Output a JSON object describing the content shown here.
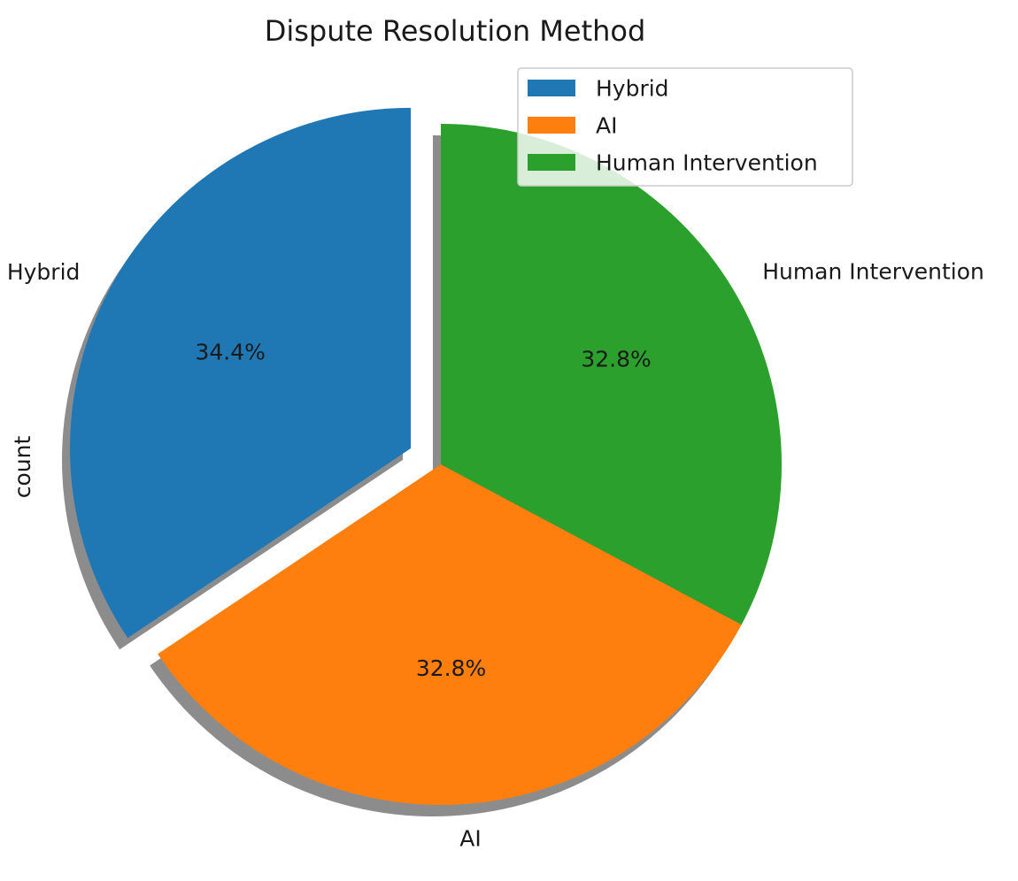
{
  "chart_data": {
    "type": "pie",
    "title": "Dispute Resolution Method",
    "ylabel": "count",
    "categories": [
      "Hybrid",
      "AI",
      "Human Intervention"
    ],
    "values": [
      34.4,
      32.8,
      32.8
    ],
    "percent_labels": [
      "34.4%",
      "32.8%",
      "32.8%"
    ],
    "colors": [
      "#1f77b4",
      "#ff7f0e",
      "#2ca02c"
    ],
    "explode": [
      0.1,
      0,
      0
    ],
    "shadow": true,
    "start_angle_deg": 90,
    "direction": "counterclockwise",
    "legend": {
      "placement": "upper right",
      "entries": [
        "Hybrid",
        "AI",
        "Human Intervention"
      ]
    }
  }
}
